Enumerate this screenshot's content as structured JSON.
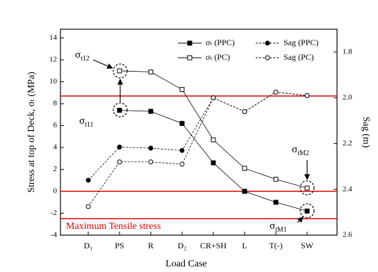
{
  "chart_data": {
    "type": "line",
    "categories": [
      "D₁",
      "PS",
      "R",
      "D₂",
      "CR+SH",
      "L",
      "T(-)",
      "SW"
    ],
    "x_label": "Load Case",
    "y_label": "Stress at top of Deck, σₜ (MPa)",
    "y2_label": "Sag (m)",
    "ylim": [
      -4,
      14.8
    ],
    "yticks": [
      -4,
      -2,
      0,
      2,
      4,
      6,
      8,
      10,
      12,
      14
    ],
    "y2lim": [
      2.6,
      1.7
    ],
    "y2ticks": [
      1.8,
      {
        "value": 2.0,
        "label": "2.0"
      },
      2.2,
      2.4,
      2.6
    ],
    "series": [
      {
        "name": "σₜ (PPC)",
        "color": "#000000",
        "marker": "square",
        "filled": true,
        "dashed": false,
        "values": [
          null,
          7.4,
          7.3,
          6.2,
          2.6,
          0,
          -1.0,
          -1.8
        ]
      },
      {
        "name": "Sag (PPC)",
        "color": "#000000",
        "marker": "circle",
        "filled": true,
        "dashed": true,
        "axis": "y2",
        "values": [
          2.36,
          2.215,
          2.22,
          2.23,
          2.0,
          2.06,
          1.975,
          1.99
        ]
      },
      {
        "name": "σₜ (PC)",
        "color": "#000000",
        "marker": "square",
        "filled": false,
        "dashed": false,
        "values": [
          null,
          11.0,
          10.9,
          9.3,
          4.7,
          2.1,
          1.1,
          0.3
        ]
      },
      {
        "name": "Sag (PC)",
        "color": "#000000",
        "marker": "circle",
        "filled": false,
        "dashed": true,
        "axis": "y2",
        "values": [
          2.475,
          2.28,
          2.28,
          2.29,
          2.0,
          2.06,
          1.975,
          1.99
        ]
      }
    ],
    "reference_lines": {
      "color": "#dd0000",
      "values": [
        8.7,
        0,
        -2.5
      ]
    },
    "annotations": [
      {
        "text": "Maximum Tensile stress"
      },
      {
        "symbol": "σ",
        "sub": "t12"
      },
      {
        "symbol": "σ",
        "sub": "t11"
      },
      {
        "symbol": "σ",
        "sub": "tM2"
      },
      {
        "symbol": "σ",
        "sub": "tM1"
      }
    ]
  }
}
